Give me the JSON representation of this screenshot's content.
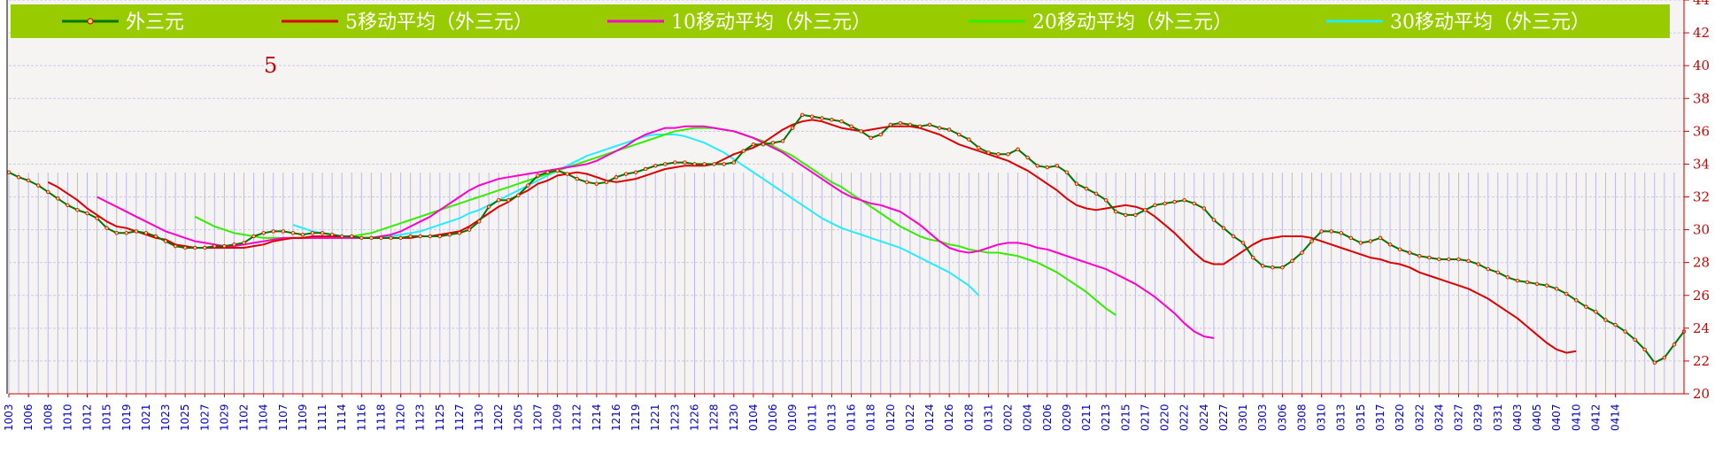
{
  "chart_data": {
    "type": "line",
    "period_label": "5",
    "ylim": [
      20,
      44
    ],
    "y_ticks": [
      20,
      22,
      24,
      26,
      28,
      30,
      32,
      34,
      36,
      38,
      40,
      42,
      44
    ],
    "grid": true,
    "legend_placement": "top",
    "colors": {
      "band": "#99cc00",
      "background": "#f6f4f2",
      "vline": "#b8b8f0",
      "hgrid": "#c8c8f0",
      "axis": "#000000"
    },
    "x_labels": [
      "1003",
      "1006",
      "1008",
      "1010",
      "1012",
      "1015",
      "1019",
      "1021",
      "1023",
      "1025",
      "1027",
      "1029",
      "1102",
      "1104",
      "1107",
      "1109",
      "1111",
      "1114",
      "1116",
      "1118",
      "1120",
      "1123",
      "1125",
      "1127",
      "1130",
      "1202",
      "1205",
      "1207",
      "1209",
      "1212",
      "1214",
      "1216",
      "1219",
      "1221",
      "1223",
      "1226",
      "1228",
      "1230",
      "0104",
      "0106",
      "0109",
      "0111",
      "0113",
      "0116",
      "0118",
      "0120",
      "0122",
      "0124",
      "0126",
      "0128",
      "0131",
      "0202",
      "0204",
      "0206",
      "0209",
      "0211",
      "0213",
      "0215",
      "0217",
      "0220",
      "0222",
      "0224",
      "0227",
      "0301",
      "0303",
      "0306",
      "0308",
      "0310",
      "0313",
      "0315",
      "0317",
      "0320",
      "0322",
      "0324",
      "0327",
      "0329",
      "0331",
      "0403",
      "0405",
      "0407",
      "0410",
      "0412",
      "0414"
    ],
    "series": [
      {
        "name": "外三元",
        "color": "#007700",
        "marker": true,
        "offset": 0,
        "values": [
          33.5,
          33.2,
          33,
          32.7,
          32.3,
          31.9,
          31.5,
          31.2,
          31,
          30.7,
          30.1,
          29.8,
          29.8,
          29.9,
          29.8,
          29.6,
          29.3,
          29,
          28.9,
          28.9,
          28.9,
          29,
          29,
          29.1,
          29.2,
          29.6,
          29.8,
          29.9,
          29.9,
          29.8,
          29.7,
          29.8,
          29.8,
          29.7,
          29.6,
          29.6,
          29.5,
          29.5,
          29.5,
          29.5,
          29.5,
          29.6,
          29.6,
          29.6,
          29.6,
          29.7,
          29.8,
          30,
          30.5,
          31.4,
          31.8,
          31.8,
          32.1,
          32.7,
          33.3,
          33.5,
          33.6,
          33.4,
          33.1,
          32.9,
          32.8,
          32.9,
          33.2,
          33.4,
          33.5,
          33.7,
          33.9,
          34,
          34.1,
          34.1,
          34,
          34,
          34,
          34,
          34.1,
          34.8,
          35.2,
          35.2,
          35.3,
          35.4,
          36.2,
          37,
          36.9,
          36.8,
          36.7,
          36.6,
          36.3,
          36,
          35.6,
          35.8,
          36.4,
          36.5,
          36.4,
          36.3,
          36.4,
          36.2,
          36.1,
          35.8,
          35.5,
          35,
          34.7,
          34.6,
          34.6,
          34.9,
          34.4,
          33.9,
          33.8,
          33.9,
          33.5,
          32.8,
          32.5,
          32.2,
          31.8,
          31.1,
          30.9,
          30.9,
          31.2,
          31.5,
          31.6,
          31.7,
          31.8,
          31.6,
          31.3,
          30.6,
          30.1,
          29.6,
          29.2,
          28.3,
          27.8,
          27.7,
          27.7,
          28.1,
          28.6,
          29.3,
          29.9,
          29.9,
          29.8,
          29.5,
          29.2,
          29.3,
          29.5,
          29.1,
          28.8,
          28.6,
          28.4,
          28.3,
          28.2,
          28.2,
          28.2,
          28.1,
          27.9,
          27.6,
          27.4,
          27.1,
          26.9,
          26.8,
          26.7,
          26.6,
          26.4,
          26.1,
          25.7,
          25.3,
          25,
          24.5,
          24.2,
          23.8,
          23.3,
          22.7,
          21.9,
          22.2,
          23,
          23.8
        ]
      },
      {
        "name": "5移动平均（外三元）",
        "color": "#dd0000",
        "marker": false,
        "offset": 4,
        "values": [
          32.9,
          32.6,
          32.2,
          31.8,
          31.3,
          30.9,
          30.5,
          30.2,
          30.1,
          29.9,
          29.7,
          29.5,
          29.4,
          29.1,
          29,
          28.9,
          28.9,
          28.9,
          28.9,
          28.9,
          28.9,
          29,
          29.1,
          29.3,
          29.4,
          29.5,
          29.5,
          29.6,
          29.6,
          29.6,
          29.6,
          29.6,
          29.5,
          29.5,
          29.5,
          29.5,
          29.5,
          29.5,
          29.6,
          29.6,
          29.7,
          29.8,
          29.9,
          30.2,
          30.6,
          31,
          31.4,
          31.7,
          32.1,
          32.4,
          32.8,
          33,
          33.3,
          33.4,
          33.5,
          33.4,
          33.2,
          33,
          32.9,
          33,
          33.1,
          33.3,
          33.5,
          33.7,
          33.8,
          33.9,
          33.9,
          33.9,
          34,
          34.3,
          34.6,
          34.8,
          35,
          35.3,
          35.7,
          36.1,
          36.4,
          36.6,
          36.7,
          36.6,
          36.4,
          36.2,
          36.1,
          36,
          36.1,
          36.2,
          36.3,
          36.3,
          36.3,
          36.2,
          36,
          35.8,
          35.5,
          35.2,
          35,
          34.8,
          34.6,
          34.4,
          34.2,
          33.9,
          33.6,
          33.2,
          32.8,
          32.4,
          31.9,
          31.5,
          31.3,
          31.2,
          31.3,
          31.4,
          31.5,
          31.4,
          31.2,
          30.8,
          30.3,
          29.8,
          29.2,
          28.6,
          28.1,
          27.9,
          27.9,
          28.3,
          28.7,
          29.1,
          29.4,
          29.5,
          29.6,
          29.6,
          29.6,
          29.5,
          29.3,
          29.1,
          28.9,
          28.7,
          28.5,
          28.3,
          28.2,
          28,
          27.9,
          27.7,
          27.4,
          27.2,
          27,
          26.8,
          26.6,
          26.4,
          26.1,
          25.8,
          25.4,
          25,
          24.6,
          24.1,
          23.6,
          23.1,
          22.7,
          22.5,
          22.6
        ]
      },
      {
        "name": "10移动平均（外三元）",
        "color": "#ff00cc",
        "marker": false,
        "offset": 9,
        "values": [
          32,
          31.7,
          31.4,
          31.1,
          30.8,
          30.5,
          30.2,
          29.9,
          29.7,
          29.5,
          29.3,
          29.2,
          29.1,
          29,
          29,
          29.1,
          29.2,
          29.3,
          29.4,
          29.5,
          29.5,
          29.5,
          29.5,
          29.5,
          29.5,
          29.5,
          29.5,
          29.5,
          29.5,
          29.6,
          29.7,
          29.9,
          30.2,
          30.5,
          30.8,
          31.2,
          31.6,
          32,
          32.4,
          32.7,
          32.9,
          33.1,
          33.2,
          33.3,
          33.4,
          33.5,
          33.6,
          33.7,
          33.8,
          33.9,
          34,
          34.2,
          34.5,
          34.8,
          35.1,
          35.5,
          35.8,
          36,
          36.2,
          36.2,
          36.3,
          36.3,
          36.3,
          36.2,
          36.1,
          36,
          35.8,
          35.6,
          35.3,
          35,
          34.7,
          34.3,
          33.9,
          33.5,
          33.1,
          32.7,
          32.3,
          32,
          31.8,
          31.6,
          31.5,
          31.3,
          31.1,
          30.7,
          30.3,
          29.8,
          29.3,
          28.9,
          28.7,
          28.6,
          28.7,
          28.9,
          29.1,
          29.2,
          29.2,
          29.1,
          28.9,
          28.8,
          28.6,
          28.4,
          28.2,
          28,
          27.8,
          27.6,
          27.3,
          27,
          26.7,
          26.3,
          25.9,
          25.4,
          24.9,
          24.3,
          23.8,
          23.5,
          23.4
        ]
      },
      {
        "name": "20移动平均（外三元）",
        "color": "#33ee00",
        "marker": false,
        "offset": 19,
        "values": [
          30.8,
          30.5,
          30.2,
          30,
          29.8,
          29.7,
          29.6,
          29.5,
          29.5,
          29.5,
          29.5,
          29.5,
          29.5,
          29.5,
          29.5,
          29.5,
          29.6,
          29.7,
          29.8,
          30,
          30.2,
          30.4,
          30.6,
          30.8,
          31,
          31.2,
          31.4,
          31.6,
          31.8,
          32,
          32.2,
          32.4,
          32.6,
          32.8,
          33,
          33.2,
          33.4,
          33.6,
          33.8,
          34,
          34.2,
          34.4,
          34.6,
          34.8,
          35,
          35.2,
          35.4,
          35.6,
          35.8,
          36,
          36.1,
          36.2,
          36.2,
          36.2,
          36.1,
          36,
          35.8,
          35.6,
          35.4,
          35.1,
          34.8,
          34.5,
          34.1,
          33.7,
          33.3,
          32.9,
          32.6,
          32.2,
          31.8,
          31.4,
          31,
          30.6,
          30.2,
          29.9,
          29.6,
          29.4,
          29.3,
          29.1,
          29,
          28.8,
          28.7,
          28.6,
          28.6,
          28.5,
          28.4,
          28.2,
          28,
          27.7,
          27.4,
          27,
          26.6,
          26.2,
          25.7,
          25.2,
          24.8
        ]
      },
      {
        "name": "30移动平均（外三元）",
        "color": "#22eeff",
        "marker": false,
        "offset": 29,
        "values": [
          30.3,
          30.1,
          29.9,
          29.8,
          29.7,
          29.6,
          29.5,
          29.5,
          29.5,
          29.6,
          29.6,
          29.7,
          29.8,
          29.9,
          30.1,
          30.3,
          30.5,
          30.7,
          31,
          31.2,
          31.5,
          31.8,
          32.1,
          32.4,
          32.7,
          33,
          33.3,
          33.6,
          33.9,
          34.2,
          34.5,
          34.7,
          34.9,
          35.1,
          35.3,
          35.5,
          35.7,
          35.8,
          35.8,
          35.8,
          35.7,
          35.5,
          35.3,
          35,
          34.7,
          34.3,
          33.9,
          33.5,
          33.1,
          32.7,
          32.3,
          31.9,
          31.5,
          31.1,
          30.7,
          30.4,
          30.1,
          29.9,
          29.7,
          29.5,
          29.3,
          29.1,
          28.9,
          28.6,
          28.3,
          28,
          27.7,
          27.4,
          27,
          26.6,
          26
        ]
      }
    ]
  }
}
